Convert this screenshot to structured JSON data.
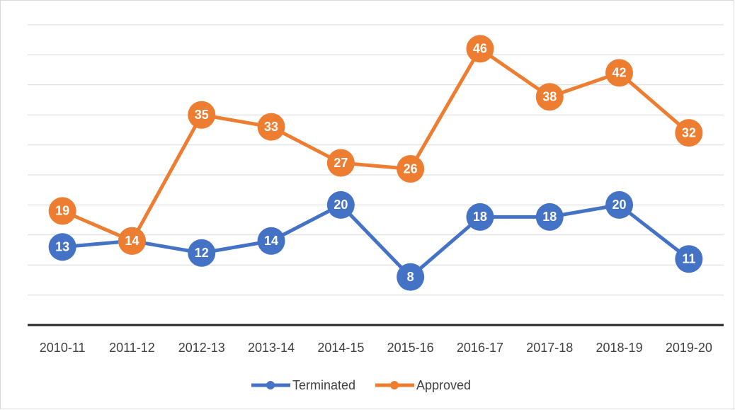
{
  "chart_data": {
    "type": "line",
    "categories": [
      "2010-11",
      "2011-12",
      "2012-13",
      "2013-14",
      "2014-15",
      "2015-16",
      "2016-17",
      "2017-18",
      "2018-19",
      "2019-20"
    ],
    "series": [
      {
        "name": "Terminated",
        "color": "#4472c4",
        "values": [
          13,
          14,
          12,
          14,
          20,
          8,
          18,
          18,
          20,
          11
        ]
      },
      {
        "name": "Approved",
        "color": "#ed7d31",
        "values": [
          19,
          14,
          35,
          33,
          27,
          26,
          46,
          38,
          42,
          32
        ]
      }
    ],
    "ylim": [
      0,
      50
    ],
    "yticks": [
      0,
      5,
      10,
      15,
      20,
      25,
      30,
      35,
      40,
      45,
      50
    ],
    "grid": true,
    "legend": "bottom"
  }
}
